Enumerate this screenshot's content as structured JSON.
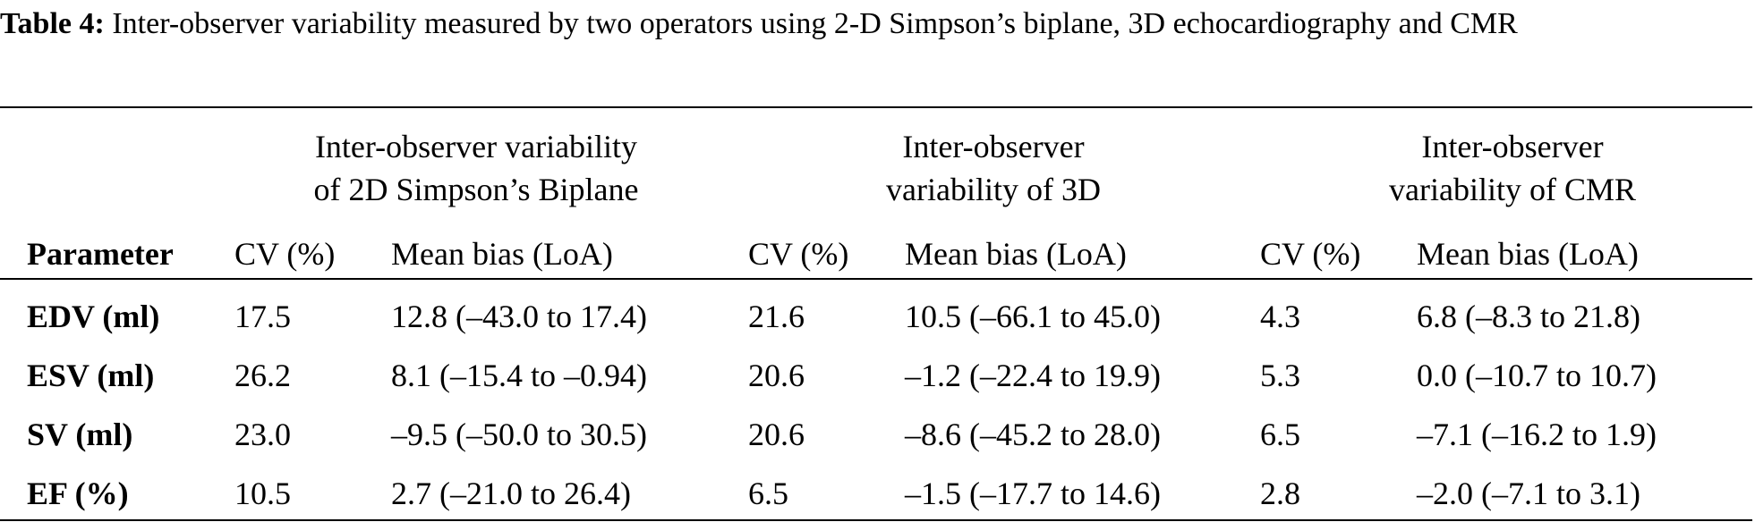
{
  "caption": {
    "label": "Table 4:",
    "text": "Inter-observer variability measured by two operators using 2-D Simpson’s biplane, 3D echocardiography and CMR"
  },
  "groups": [
    {
      "line1": "Inter-observer variability",
      "line2": "of 2D Simpson’s Biplane"
    },
    {
      "line1": "Inter-observer",
      "line2": "variability of 3D"
    },
    {
      "line1": "Inter-observer",
      "line2": "variability of CMR"
    }
  ],
  "headers": [
    "Parameter",
    "CV (%)",
    "Mean bias (LoA)",
    "CV (%)",
    "Mean bias (LoA)",
    "CV (%)",
    "Mean bias (LoA)"
  ],
  "rows": [
    [
      "EDV (ml)",
      "17.5",
      "12.8 (–43.0 to 17.4)",
      "21.6",
      "10.5 (–66.1 to 45.0)",
      "4.3",
      "6.8 (–8.3 to 21.8)"
    ],
    [
      "ESV (ml)",
      "26.2",
      "8.1 (–15.4 to –0.94)",
      "20.6",
      "–1.2 (–22.4 to 19.9)",
      "5.3",
      "0.0 (–10.7 to 10.7)"
    ],
    [
      "SV (ml)",
      "23.0",
      "–9.5 (–50.0 to 30.5)",
      "20.6",
      "–8.6 (–45.2 to 28.0)",
      "6.5",
      "–7.1 (–16.2 to 1.9)"
    ],
    [
      "EF (%)",
      "10.5",
      "2.7 (–21.0 to 26.4)",
      "6.5",
      "–1.5 (–17.7 to 14.6)",
      "2.8",
      "–2.0 (–7.1 to 3.1)"
    ]
  ]
}
